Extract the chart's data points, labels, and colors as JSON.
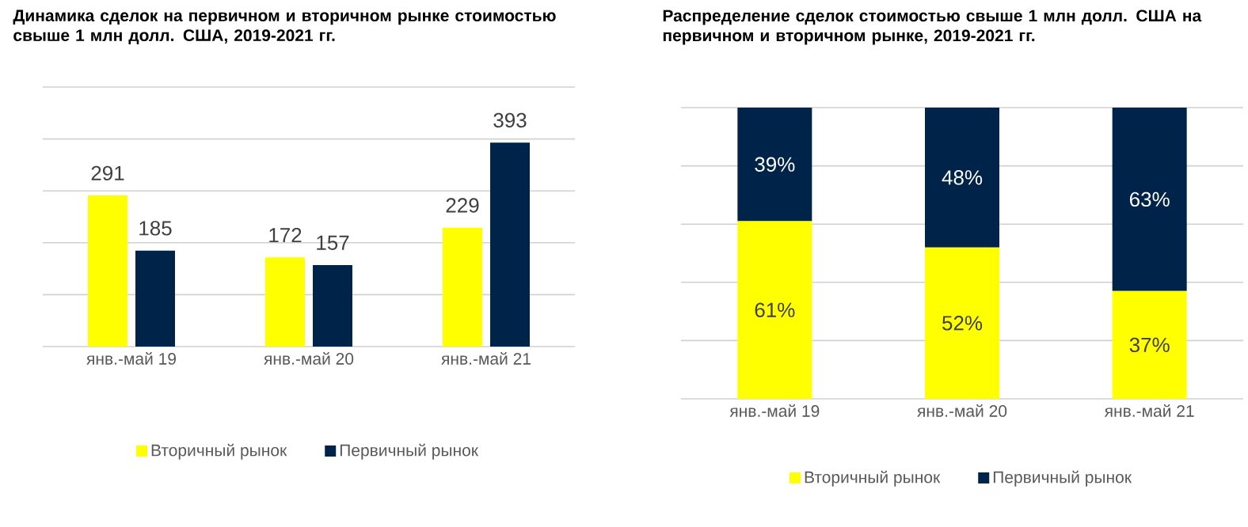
{
  "chart_data": [
    {
      "type": "bar",
      "title": "Динамика сделок на первичном и вторичном рынке стоимостью свыше 1 млн долл. США, 2019-2021 гг.",
      "categories": [
        "янв.-май 19",
        "янв.-май 20",
        "янв.-май 21"
      ],
      "series": [
        {
          "name": "Вторичный рынок",
          "color": "#ffff00",
          "values": [
            291,
            172,
            229
          ]
        },
        {
          "name": "Первичный рынок",
          "color": "#00234a",
          "values": [
            185,
            157,
            393
          ]
        }
      ],
      "ylim": [
        0,
        500
      ],
      "yticks": [
        0,
        100,
        200,
        300,
        400,
        500
      ],
      "tick_labels": "x",
      "grid": "y",
      "data_labels": true,
      "legend": "bottom"
    },
    {
      "type": "bar",
      "title": "Распределение сделок стоимостью свыше 1 млн долл. США на первичном и вторичном рынке, 2019-2021 гг.",
      "categories": [
        "янв.-май 19",
        "янв.-май 20",
        "янв.-май 21"
      ],
      "stacked": true,
      "series": [
        {
          "name": "Вторичный рынок",
          "color": "#ffff00",
          "values": [
            61,
            52,
            37
          ],
          "value_labels": [
            "61%",
            "52%",
            "37%"
          ]
        },
        {
          "name": "Первичный рынок",
          "color": "#00234a",
          "values": [
            39,
            48,
            63
          ],
          "value_labels": [
            "39%",
            "48%",
            "63%"
          ]
        }
      ],
      "ylim": [
        0,
        100
      ],
      "yticks": [
        0,
        20,
        40,
        60,
        80,
        100
      ],
      "tick_labels": "x",
      "grid": "y",
      "legend": "bottom"
    }
  ]
}
